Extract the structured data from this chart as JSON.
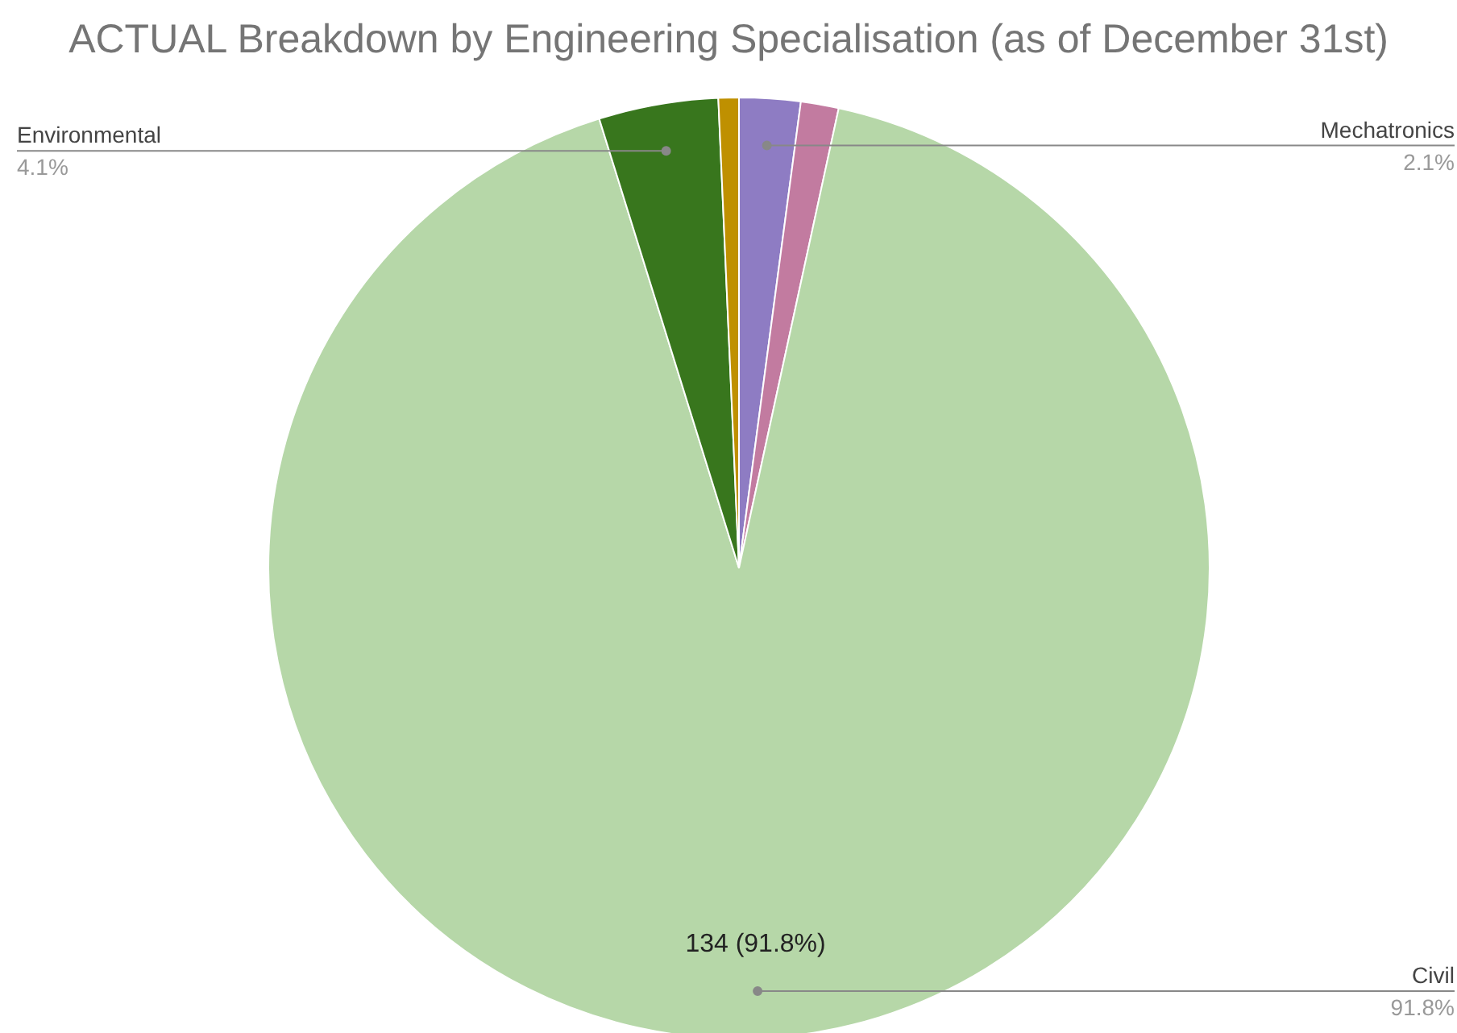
{
  "chart_data": {
    "type": "pie",
    "title": "ACTUAL Breakdown by Engineering Specialisation (as of December 31st)",
    "categories": [
      "Mechatronics",
      null,
      "Civil",
      "Environmental",
      null
    ],
    "values": [
      2.1,
      1.3,
      91.8,
      4.1,
      0.7
    ],
    "colors": [
      "#8e7cc3",
      "#c27ba0",
      "#b6d7a8",
      "#38761d",
      "#bf9000"
    ],
    "value_labels": [
      "2.1%",
      null,
      "91.8%",
      "4.1%",
      null
    ],
    "annotations": [
      {
        "text": "134 (91.8%)",
        "x": "Civil"
      }
    ]
  }
}
